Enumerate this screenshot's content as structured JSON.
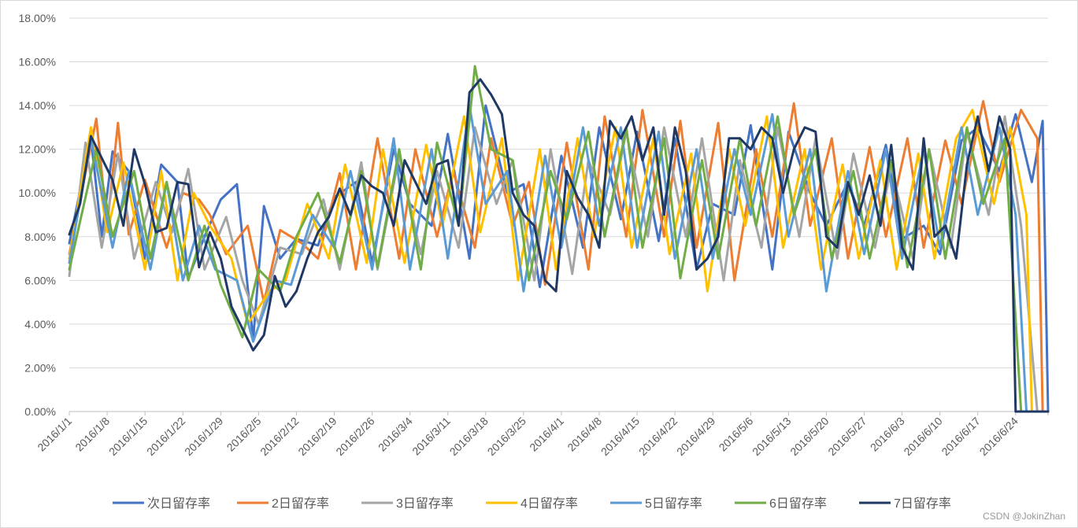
{
  "chart_data": {
    "type": "line",
    "title": "",
    "xlabel": "",
    "ylabel": "",
    "ylim": [
      0,
      0.18
    ],
    "y_tick_labels": [
      "0.00%",
      "2.00%",
      "4.00%",
      "6.00%",
      "8.00%",
      "10.00%",
      "12.00%",
      "14.00%",
      "16.00%",
      "18.00%"
    ],
    "x_range": [
      "2016/1/1",
      "2016/6/30"
    ],
    "x_tick_labels": [
      "2016/1/1",
      "2016/1/8",
      "2016/1/15",
      "2016/1/22",
      "2016/1/29",
      "2016/2/5",
      "2016/2/12",
      "2016/2/19",
      "2016/2/26",
      "2016/3/4",
      "2016/3/11",
      "2016/3/18",
      "2016/3/25",
      "2016/4/1",
      "2016/4/8",
      "2016/4/15",
      "2016/4/22",
      "2016/4/29",
      "2016/5/6",
      "2016/5/13",
      "2016/5/20",
      "2016/5/27",
      "2016/6/3",
      "2016/6/10",
      "2016/6/17",
      "2016/6/24"
    ],
    "grid": true,
    "legend_position": "bottom",
    "series": [
      {
        "name": "次日留存率",
        "color": "#4472C4",
        "x": [
          "2016/1/1",
          "2016/1/5",
          "2016/1/7",
          "2016/1/9",
          "2016/1/12",
          "2016/1/15",
          "2016/1/18",
          "2016/1/21",
          "2016/1/23",
          "2016/1/26",
          "2016/1/29",
          "2016/2/1",
          "2016/2/4",
          "2016/2/6",
          "2016/2/9",
          "2016/2/12",
          "2016/2/16",
          "2016/2/19",
          "2016/2/23",
          "2016/2/26",
          "2016/3/1",
          "2016/3/4",
          "2016/3/8",
          "2016/3/11",
          "2016/3/15",
          "2016/3/18",
          "2016/3/22",
          "2016/3/25",
          "2016/3/28",
          "2016/4/1",
          "2016/4/5",
          "2016/4/8",
          "2016/4/12",
          "2016/4/15",
          "2016/4/19",
          "2016/4/22",
          "2016/4/26",
          "2016/4/29",
          "2016/5/3",
          "2016/5/6",
          "2016/5/10",
          "2016/5/13",
          "2016/5/17",
          "2016/5/20",
          "2016/5/24",
          "2016/5/27",
          "2016/5/31",
          "2016/6/3",
          "2016/6/7",
          "2016/6/10",
          "2016/6/14",
          "2016/6/17",
          "2016/6/21",
          "2016/6/24",
          "2016/6/27",
          "2016/6/29",
          "2016/6/30"
        ],
        "y": [
          0.077,
          0.125,
          0.08,
          0.119,
          0.11,
          0.07,
          0.113,
          0.105,
          0.061,
          0.08,
          0.097,
          0.104,
          0.033,
          0.094,
          0.07,
          0.079,
          0.076,
          0.098,
          0.105,
          0.068,
          0.12,
          0.095,
          0.085,
          0.127,
          0.07,
          0.14,
          0.1,
          0.104,
          0.057,
          0.117,
          0.075,
          0.13,
          0.088,
          0.128,
          0.078,
          0.125,
          0.065,
          0.095,
          0.09,
          0.131,
          0.065,
          0.128,
          0.1,
          0.085,
          0.105,
          0.085,
          0.122,
          0.079,
          0.085,
          0.072,
          0.124,
          0.13,
          0.11,
          0.136,
          0.105,
          0.133,
          0.0
        ]
      },
      {
        "name": "2日留存率",
        "color": "#ED7D31",
        "x": [
          "2016/1/1",
          "2016/1/6",
          "2016/1/8",
          "2016/1/10",
          "2016/1/12",
          "2016/1/15",
          "2016/1/19",
          "2016/1/22",
          "2016/1/25",
          "2016/1/27",
          "2016/1/30",
          "2016/2/3",
          "2016/2/6",
          "2016/2/9",
          "2016/2/13",
          "2016/2/16",
          "2016/2/20",
          "2016/2/23",
          "2016/2/27",
          "2016/3/2",
          "2016/3/5",
          "2016/3/9",
          "2016/3/12",
          "2016/3/16",
          "2016/3/19",
          "2016/3/23",
          "2016/3/26",
          "2016/3/29",
          "2016/4/2",
          "2016/4/6",
          "2016/4/9",
          "2016/4/13",
          "2016/4/16",
          "2016/4/20",
          "2016/4/23",
          "2016/4/26",
          "2016/4/30",
          "2016/5/3",
          "2016/5/7",
          "2016/5/10",
          "2016/5/14",
          "2016/5/17",
          "2016/5/21",
          "2016/5/24",
          "2016/5/28",
          "2016/5/31",
          "2016/6/4",
          "2016/6/7",
          "2016/6/11",
          "2016/6/14",
          "2016/6/18",
          "2016/6/21",
          "2016/6/25",
          "2016/6/28",
          "2016/6/29"
        ],
        "y": [
          0.072,
          0.134,
          0.085,
          0.132,
          0.081,
          0.106,
          0.075,
          0.1,
          0.097,
          0.09,
          0.072,
          0.085,
          0.05,
          0.083,
          0.077,
          0.07,
          0.109,
          0.065,
          0.125,
          0.07,
          0.12,
          0.08,
          0.11,
          0.075,
          0.125,
          0.085,
          0.105,
          0.058,
          0.123,
          0.065,
          0.135,
          0.08,
          0.138,
          0.08,
          0.133,
          0.075,
          0.132,
          0.06,
          0.12,
          0.08,
          0.141,
          0.085,
          0.125,
          0.07,
          0.121,
          0.08,
          0.125,
          0.075,
          0.124,
          0.095,
          0.142,
          0.105,
          0.138,
          0.125,
          0.0
        ]
      },
      {
        "name": "3日留存率",
        "color": "#A5A5A5",
        "x": [
          "2016/1/1",
          "2016/1/4",
          "2016/1/7",
          "2016/1/10",
          "2016/1/13",
          "2016/1/17",
          "2016/1/20",
          "2016/1/23",
          "2016/1/26",
          "2016/1/30",
          "2016/2/2",
          "2016/2/5",
          "2016/2/9",
          "2016/2/13",
          "2016/2/17",
          "2016/2/20",
          "2016/2/24",
          "2016/2/27",
          "2016/3/2",
          "2016/3/6",
          "2016/3/9",
          "2016/3/13",
          "2016/3/16",
          "2016/3/20",
          "2016/3/23",
          "2016/3/27",
          "2016/3/30",
          "2016/4/3",
          "2016/4/6",
          "2016/4/10",
          "2016/4/13",
          "2016/4/17",
          "2016/4/20",
          "2016/4/24",
          "2016/4/27",
          "2016/5/1",
          "2016/5/4",
          "2016/5/8",
          "2016/5/11",
          "2016/5/15",
          "2016/5/18",
          "2016/5/22",
          "2016/5/25",
          "2016/5/29",
          "2016/6/1",
          "2016/6/5",
          "2016/6/8",
          "2016/6/12",
          "2016/6/15",
          "2016/6/19",
          "2016/6/22",
          "2016/6/25",
          "2016/6/28"
        ],
        "y": [
          0.062,
          0.123,
          0.075,
          0.118,
          0.07,
          0.105,
          0.082,
          0.111,
          0.065,
          0.089,
          0.06,
          0.04,
          0.075,
          0.072,
          0.097,
          0.065,
          0.114,
          0.065,
          0.117,
          0.072,
          0.11,
          0.075,
          0.13,
          0.095,
          0.115,
          0.06,
          0.12,
          0.063,
          0.115,
          0.09,
          0.128,
          0.08,
          0.13,
          0.08,
          0.125,
          0.06,
          0.115,
          0.075,
          0.13,
          0.08,
          0.125,
          0.07,
          0.118,
          0.075,
          0.112,
          0.07,
          0.12,
          0.075,
          0.128,
          0.09,
          0.135,
          0.085,
          0.0
        ]
      },
      {
        "name": "4日留存率",
        "color": "#FFC000",
        "x": [
          "2016/1/1",
          "2016/1/5",
          "2016/1/8",
          "2016/1/11",
          "2016/1/15",
          "2016/1/18",
          "2016/1/21",
          "2016/1/24",
          "2016/1/27",
          "2016/1/31",
          "2016/2/3",
          "2016/2/7",
          "2016/2/10",
          "2016/2/14",
          "2016/2/18",
          "2016/2/21",
          "2016/2/25",
          "2016/2/28",
          "2016/3/3",
          "2016/3/7",
          "2016/3/10",
          "2016/3/14",
          "2016/3/17",
          "2016/3/21",
          "2016/3/24",
          "2016/3/28",
          "2016/3/31",
          "2016/4/4",
          "2016/4/7",
          "2016/4/11",
          "2016/4/14",
          "2016/4/18",
          "2016/4/21",
          "2016/4/25",
          "2016/4/28",
          "2016/5/2",
          "2016/5/5",
          "2016/5/9",
          "2016/5/12",
          "2016/5/16",
          "2016/5/19",
          "2016/5/23",
          "2016/5/26",
          "2016/5/30",
          "2016/6/2",
          "2016/6/6",
          "2016/6/9",
          "2016/6/13",
          "2016/6/16",
          "2016/6/20",
          "2016/6/23",
          "2016/6/26",
          "2016/6/27"
        ],
        "y": [
          0.07,
          0.13,
          0.082,
          0.114,
          0.065,
          0.11,
          0.06,
          0.1,
          0.085,
          0.07,
          0.04,
          0.055,
          0.06,
          0.095,
          0.07,
          0.113,
          0.068,
          0.12,
          0.068,
          0.122,
          0.085,
          0.135,
          0.082,
          0.125,
          0.06,
          0.12,
          0.065,
          0.125,
          0.08,
          0.13,
          0.075,
          0.125,
          0.072,
          0.118,
          0.055,
          0.12,
          0.085,
          0.135,
          0.075,
          0.12,
          0.065,
          0.113,
          0.07,
          0.115,
          0.065,
          0.118,
          0.07,
          0.125,
          0.138,
          0.095,
          0.13,
          0.09,
          0.0
        ]
      },
      {
        "name": "5日留存率",
        "color": "#5B9BD5",
        "x": [
          "2016/1/1",
          "2016/1/5",
          "2016/1/9",
          "2016/1/12",
          "2016/1/16",
          "2016/1/19",
          "2016/1/22",
          "2016/1/25",
          "2016/1/28",
          "2016/2/1",
          "2016/2/4",
          "2016/2/8",
          "2016/2/11",
          "2016/2/15",
          "2016/2/19",
          "2016/2/22",
          "2016/2/26",
          "2016/3/1",
          "2016/3/4",
          "2016/3/8",
          "2016/3/11",
          "2016/3/15",
          "2016/3/18",
          "2016/3/22",
          "2016/3/25",
          "2016/3/29",
          "2016/4/1",
          "2016/4/5",
          "2016/4/8",
          "2016/4/12",
          "2016/4/15",
          "2016/4/19",
          "2016/4/22",
          "2016/4/26",
          "2016/4/29",
          "2016/5/3",
          "2016/5/6",
          "2016/5/10",
          "2016/5/13",
          "2016/5/17",
          "2016/5/20",
          "2016/5/24",
          "2016/5/27",
          "2016/5/31",
          "2016/6/3",
          "2016/6/7",
          "2016/6/10",
          "2016/6/14",
          "2016/6/17",
          "2016/6/21",
          "2016/6/24",
          "2016/6/26"
        ],
        "y": [
          0.068,
          0.125,
          0.075,
          0.11,
          0.065,
          0.105,
          0.06,
          0.085,
          0.065,
          0.06,
          0.032,
          0.06,
          0.058,
          0.09,
          0.075,
          0.11,
          0.065,
          0.125,
          0.065,
          0.12,
          0.07,
          0.14,
          0.095,
          0.11,
          0.055,
          0.117,
          0.075,
          0.13,
          0.085,
          0.13,
          0.075,
          0.128,
          0.07,
          0.12,
          0.07,
          0.12,
          0.09,
          0.136,
          0.08,
          0.12,
          0.055,
          0.11,
          0.072,
          0.12,
          0.07,
          0.12,
          0.075,
          0.13,
          0.09,
          0.13,
          0.09,
          0.0
        ]
      },
      {
        "name": "6日留存率",
        "color": "#70AD47",
        "x": [
          "2016/1/1",
          "2016/1/6",
          "2016/1/9",
          "2016/1/13",
          "2016/1/16",
          "2016/1/19",
          "2016/1/23",
          "2016/1/26",
          "2016/1/29",
          "2016/2/2",
          "2016/2/5",
          "2016/2/9",
          "2016/2/12",
          "2016/2/16",
          "2016/2/20",
          "2016/2/24",
          "2016/2/27",
          "2016/3/2",
          "2016/3/6",
          "2016/3/9",
          "2016/3/13",
          "2016/3/16",
          "2016/3/19",
          "2016/3/23",
          "2016/3/26",
          "2016/3/30",
          "2016/4/2",
          "2016/4/6",
          "2016/4/9",
          "2016/4/13",
          "2016/4/16",
          "2016/4/20",
          "2016/4/23",
          "2016/4/27",
          "2016/4/30",
          "2016/5/4",
          "2016/5/7",
          "2016/5/11",
          "2016/5/14",
          "2016/5/18",
          "2016/5/21",
          "2016/5/25",
          "2016/5/28",
          "2016/6/1",
          "2016/6/4",
          "2016/6/8",
          "2016/6/11",
          "2016/6/15",
          "2016/6/18",
          "2016/6/22",
          "2016/6/25"
        ],
        "y": [
          0.065,
          0.12,
          0.08,
          0.11,
          0.07,
          0.105,
          0.06,
          0.085,
          0.058,
          0.034,
          0.065,
          0.055,
          0.08,
          0.1,
          0.068,
          0.11,
          0.066,
          0.12,
          0.065,
          0.123,
          0.085,
          0.158,
          0.12,
          0.115,
          0.06,
          0.11,
          0.088,
          0.128,
          0.08,
          0.13,
          0.075,
          0.125,
          0.061,
          0.115,
          0.07,
          0.125,
          0.085,
          0.135,
          0.09,
          0.12,
          0.07,
          0.11,
          0.07,
          0.115,
          0.066,
          0.12,
          0.07,
          0.13,
          0.095,
          0.125,
          0.0
        ]
      },
      {
        "name": "7日留存率",
        "color": "#203864",
        "x": [
          "2016/1/1",
          "2016/1/3",
          "2016/1/5",
          "2016/1/7",
          "2016/1/9",
          "2016/1/11",
          "2016/1/13",
          "2016/1/15",
          "2016/1/17",
          "2016/1/19",
          "2016/1/21",
          "2016/1/23",
          "2016/1/25",
          "2016/1/27",
          "2016/1/29",
          "2016/1/31",
          "2016/2/2",
          "2016/2/4",
          "2016/2/6",
          "2016/2/8",
          "2016/2/10",
          "2016/2/12",
          "2016/2/14",
          "2016/2/16",
          "2016/2/18",
          "2016/2/20",
          "2016/2/22",
          "2016/2/24",
          "2016/2/26",
          "2016/2/28",
          "2016/3/1",
          "2016/3/3",
          "2016/3/5",
          "2016/3/7",
          "2016/3/9",
          "2016/3/11",
          "2016/3/13",
          "2016/3/15",
          "2016/3/17",
          "2016/3/19",
          "2016/3/21",
          "2016/3/23",
          "2016/3/25",
          "2016/3/27",
          "2016/3/29",
          "2016/3/31",
          "2016/4/2",
          "2016/4/4",
          "2016/4/6",
          "2016/4/8",
          "2016/4/10",
          "2016/4/12",
          "2016/4/14",
          "2016/4/16",
          "2016/4/18",
          "2016/4/20",
          "2016/4/22",
          "2016/4/24",
          "2016/4/26",
          "2016/4/28",
          "2016/4/30",
          "2016/5/2",
          "2016/5/4",
          "2016/5/6",
          "2016/5/8",
          "2016/5/10",
          "2016/5/12",
          "2016/5/14",
          "2016/5/16",
          "2016/5/18",
          "2016/5/20",
          "2016/5/22",
          "2016/5/24",
          "2016/5/26",
          "2016/5/28",
          "2016/5/30",
          "2016/6/1",
          "2016/6/3",
          "2016/6/5",
          "2016/6/7",
          "2016/6/9",
          "2016/6/11",
          "2016/6/13",
          "2016/6/15",
          "2016/6/17",
          "2016/6/19",
          "2016/6/21",
          "2016/6/23",
          "2016/6/24",
          "2016/6/30"
        ],
        "y": [
          0.081,
          0.095,
          0.126,
          0.116,
          0.106,
          0.085,
          0.12,
          0.104,
          0.082,
          0.084,
          0.105,
          0.104,
          0.066,
          0.082,
          0.07,
          0.048,
          0.038,
          0.028,
          0.035,
          0.062,
          0.048,
          0.055,
          0.07,
          0.082,
          0.089,
          0.102,
          0.09,
          0.108,
          0.103,
          0.1,
          0.085,
          0.115,
          0.105,
          0.095,
          0.113,
          0.115,
          0.085,
          0.146,
          0.152,
          0.145,
          0.136,
          0.1,
          0.09,
          0.085,
          0.06,
          0.055,
          0.11,
          0.098,
          0.09,
          0.075,
          0.133,
          0.125,
          0.135,
          0.115,
          0.13,
          0.09,
          0.13,
          0.11,
          0.065,
          0.07,
          0.08,
          0.125,
          0.125,
          0.12,
          0.13,
          0.125,
          0.1,
          0.12,
          0.13,
          0.128,
          0.08,
          0.075,
          0.105,
          0.09,
          0.108,
          0.085,
          0.122,
          0.075,
          0.065,
          0.125,
          0.08,
          0.085,
          0.07,
          0.113,
          0.135,
          0.11,
          0.135,
          0.12,
          0.0,
          0.0
        ]
      }
    ]
  },
  "watermark": "CSDN @JokinZhan"
}
